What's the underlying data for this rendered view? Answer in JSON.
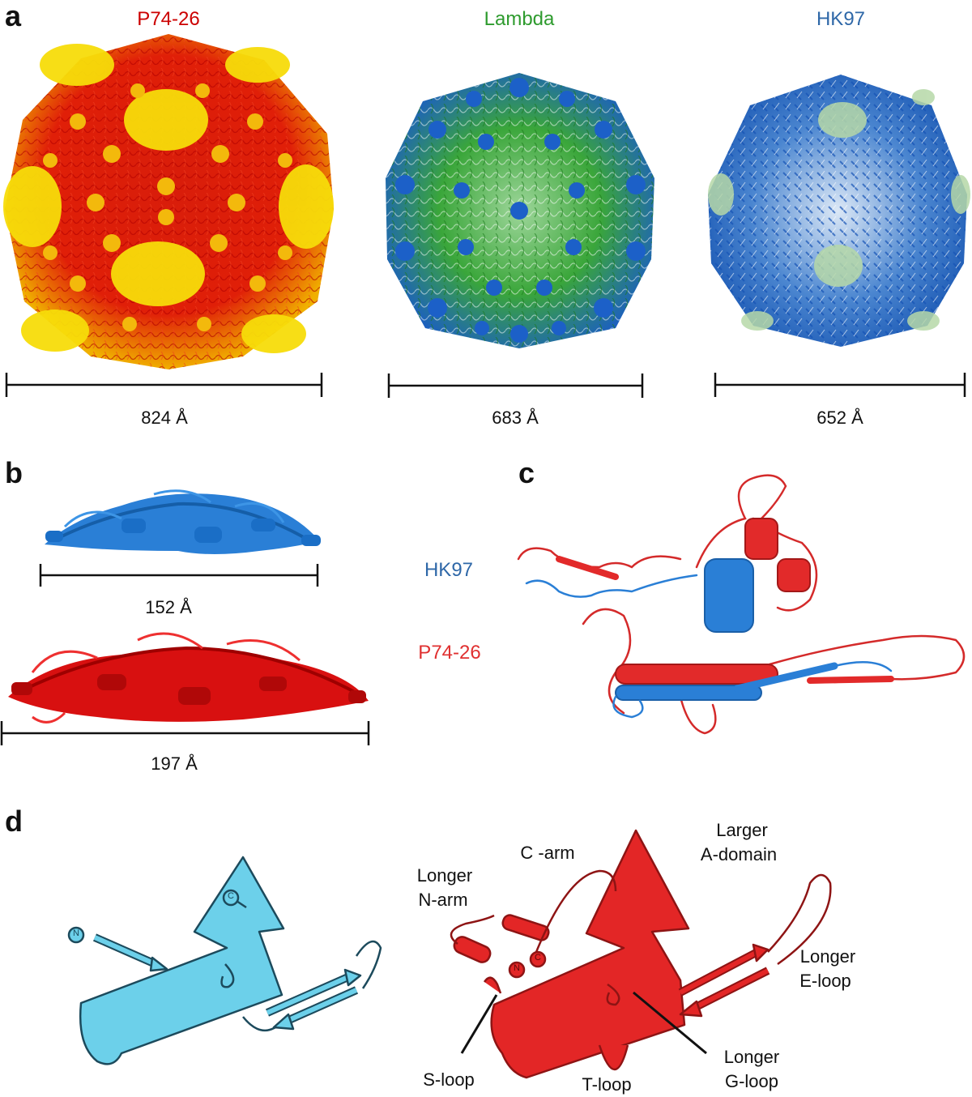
{
  "panels": {
    "a": "a",
    "b": "b",
    "c": "c",
    "d": "d"
  },
  "colors": {
    "p7426_red": "#cc0000",
    "p7426_red_light": "#e83030",
    "lambda_green": "#2e9b2e",
    "hk97_blue": "#2f68a8",
    "schematic_cyan": "#6cd0ea",
    "schematic_red": "#e32626"
  },
  "panel_a": {
    "capsids": [
      {
        "name": "P74-26",
        "scale": "824 Å"
      },
      {
        "name": "Lambda",
        "scale": "683 Å"
      },
      {
        "name": "HK97",
        "scale": "652 Å"
      }
    ]
  },
  "panel_b": {
    "hk97_width": "152 Å",
    "p7426_width": "197 Å"
  },
  "panel_c": {
    "legend_hk97": "HK97",
    "legend_p7426": "P74-26"
  },
  "panel_d": {
    "hk97_terminal_n": "N",
    "hk97_terminal_c": "C",
    "p7426_terminal_n": "N",
    "p7426_terminal_c": "C",
    "labels": {
      "c_arm": "C -arm",
      "longer_n_arm_1": "Longer",
      "longer_n_arm_2": "N-arm",
      "larger_a_domain_1": "Larger",
      "larger_a_domain_2": "A-domain",
      "longer_e_loop_1": "Longer",
      "longer_e_loop_2": "E-loop",
      "s_loop": "S-loop",
      "t_loop": "T-loop",
      "longer_g_loop_1": "Longer",
      "longer_g_loop_2": "G-loop"
    }
  }
}
